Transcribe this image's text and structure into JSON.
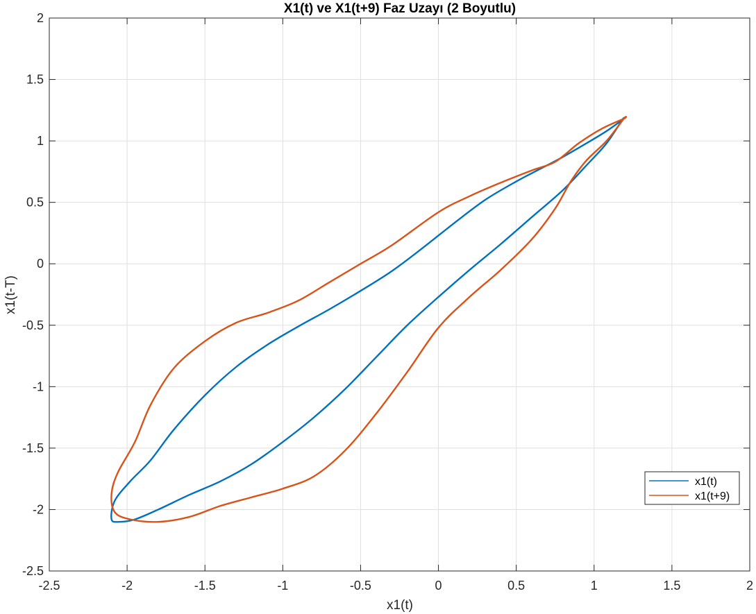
{
  "chart_data": {
    "type": "line",
    "title": "X1(t) ve X1(t+9) Faz Uzayı (2 Boyutlu)",
    "xlabel": "x1(t)",
    "ylabel": "x1(t-T)",
    "xlim": [
      -2.5,
      2
    ],
    "ylim": [
      -2.5,
      2
    ],
    "xticks": [
      -2.5,
      -2,
      -1.5,
      -1,
      -0.5,
      0,
      0.5,
      1,
      1.5,
      2
    ],
    "yticks": [
      -2.5,
      -2,
      -1.5,
      -1,
      -0.5,
      0,
      0.5,
      1,
      1.5,
      2
    ],
    "xtick_labels": [
      "-2.5",
      "-2",
      "-1.5",
      "-1",
      "-0.5",
      "0",
      "0.5",
      "1",
      "1.5",
      "2"
    ],
    "ytick_labels": [
      "-2.5",
      "-2",
      "-1.5",
      "-1",
      "-0.5",
      "0",
      "0.5",
      "1",
      "1.5",
      "2"
    ],
    "grid": true,
    "legend_position": "bottom-right",
    "series": [
      {
        "name": "x1(t)",
        "color": "#0072BD",
        "closed": true,
        "points": [
          [
            1.18,
            1.17
          ],
          [
            1.08,
            1.08
          ],
          [
            0.95,
            0.98
          ],
          [
            0.8,
            0.87
          ],
          [
            0.65,
            0.77
          ],
          [
            0.5,
            0.67
          ],
          [
            0.3,
            0.52
          ],
          [
            0.1,
            0.33
          ],
          [
            -0.1,
            0.13
          ],
          [
            -0.3,
            -0.06
          ],
          [
            -0.5,
            -0.22
          ],
          [
            -0.7,
            -0.37
          ],
          [
            -0.9,
            -0.51
          ],
          [
            -1.1,
            -0.66
          ],
          [
            -1.3,
            -0.84
          ],
          [
            -1.5,
            -1.07
          ],
          [
            -1.7,
            -1.35
          ],
          [
            -1.85,
            -1.6
          ],
          [
            -1.98,
            -1.77
          ],
          [
            -2.08,
            -1.93
          ],
          [
            -2.1,
            -2.08
          ],
          [
            -2.05,
            -2.1
          ],
          [
            -1.95,
            -2.08
          ],
          [
            -1.8,
            -2.0
          ],
          [
            -1.6,
            -1.88
          ],
          [
            -1.4,
            -1.77
          ],
          [
            -1.2,
            -1.63
          ],
          [
            -1.0,
            -1.45
          ],
          [
            -0.8,
            -1.25
          ],
          [
            -0.6,
            -1.02
          ],
          [
            -0.4,
            -0.76
          ],
          [
            -0.2,
            -0.5
          ],
          [
            0.0,
            -0.27
          ],
          [
            0.2,
            -0.05
          ],
          [
            0.4,
            0.16
          ],
          [
            0.6,
            0.38
          ],
          [
            0.8,
            0.6
          ],
          [
            0.95,
            0.8
          ],
          [
            1.08,
            0.98
          ],
          [
            1.18,
            1.17
          ]
        ]
      },
      {
        "name": "x1(t+9)",
        "color": "#D95319",
        "closed": true,
        "points": [
          [
            1.19,
            1.18
          ],
          [
            1.05,
            1.1
          ],
          [
            0.9,
            0.98
          ],
          [
            0.75,
            0.83
          ],
          [
            0.6,
            0.76
          ],
          [
            0.4,
            0.66
          ],
          [
            0.2,
            0.55
          ],
          [
            0.0,
            0.42
          ],
          [
            -0.3,
            0.15
          ],
          [
            -0.5,
            0.0
          ],
          [
            -0.7,
            -0.15
          ],
          [
            -0.9,
            -0.3
          ],
          [
            -1.1,
            -0.4
          ],
          [
            -1.3,
            -0.48
          ],
          [
            -1.5,
            -0.63
          ],
          [
            -1.7,
            -0.85
          ],
          [
            -1.85,
            -1.15
          ],
          [
            -1.95,
            -1.45
          ],
          [
            -2.06,
            -1.7
          ],
          [
            -2.1,
            -1.87
          ],
          [
            -2.08,
            -2.02
          ],
          [
            -1.98,
            -2.08
          ],
          [
            -1.8,
            -2.1
          ],
          [
            -1.6,
            -2.06
          ],
          [
            -1.4,
            -1.97
          ],
          [
            -1.2,
            -1.9
          ],
          [
            -1.0,
            -1.83
          ],
          [
            -0.8,
            -1.73
          ],
          [
            -0.6,
            -1.52
          ],
          [
            -0.4,
            -1.22
          ],
          [
            -0.2,
            -0.88
          ],
          [
            0.0,
            -0.52
          ],
          [
            0.2,
            -0.27
          ],
          [
            0.4,
            -0.05
          ],
          [
            0.6,
            0.2
          ],
          [
            0.75,
            0.45
          ],
          [
            0.85,
            0.67
          ],
          [
            0.95,
            0.84
          ],
          [
            1.08,
            1.0
          ],
          [
            1.19,
            1.18
          ]
        ]
      }
    ]
  }
}
